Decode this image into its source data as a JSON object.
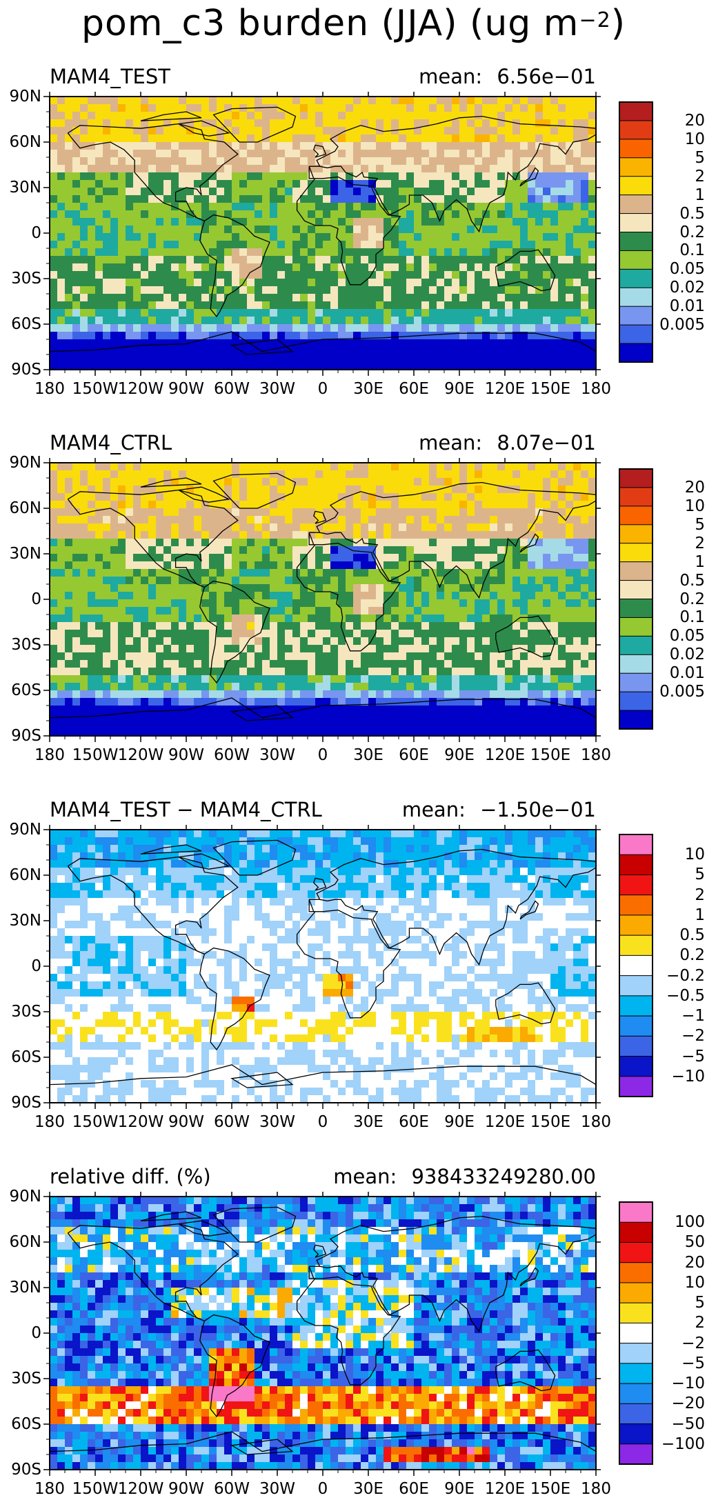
{
  "figure": {
    "title_main": "pom_c3 burden (JJA) (ug m",
    "title_sup": "−2",
    "title_close": ")"
  },
  "x_ticks": [
    "180",
    "150W",
    "120W",
    "90W",
    "60W",
    "30W",
    "0",
    "30E",
    "60E",
    "90E",
    "120E",
    "150E",
    "180"
  ],
  "y_ticks": [
    "90N",
    "60N",
    "30N",
    "0",
    "30S",
    "60S",
    "90S"
  ],
  "colors": {
    "abs": [
      "#0000c8",
      "#3c64e6",
      "#7896f0",
      "#a5dbe6",
      "#1eaaa0",
      "#96c832",
      "#2d8c4b",
      "#f5e6be",
      "#dcb48c",
      "#fadc0a",
      "#fab400",
      "#fa6400",
      "#e13c14",
      "#b41e1e"
    ],
    "diff": [
      "#8c28e6",
      "#0a14c8",
      "#3c64e6",
      "#1e8cf0",
      "#00b4f0",
      "#a0d2fa",
      "#ffffff",
      "#fae11e",
      "#faaa00",
      "#fa6e00",
      "#f01414",
      "#c80000",
      "#fa78c8"
    ],
    "coast": "#000000"
  },
  "chart_data": [
    {
      "type": "heatmap",
      "id": "test",
      "title": "MAM4_TEST",
      "mean_label": "mean:",
      "mean_value": "6.56e−01",
      "palette": "abs",
      "colorbar_levels": [
        "0.005",
        "0.01",
        "0.02",
        "0.05",
        "0.1",
        "0.2",
        "0.5",
        "1",
        "2",
        "5",
        "10",
        "20"
      ],
      "x_range_deg": [
        -180,
        180
      ],
      "y_range_deg": [
        -90,
        90
      ]
    },
    {
      "type": "heatmap",
      "id": "ctrl",
      "title": "MAM4_CTRL",
      "mean_label": "mean:",
      "mean_value": "8.07e−01",
      "palette": "abs",
      "colorbar_levels": [
        "0.005",
        "0.01",
        "0.02",
        "0.05",
        "0.1",
        "0.2",
        "0.5",
        "1",
        "2",
        "5",
        "10",
        "20"
      ],
      "x_range_deg": [
        -180,
        180
      ],
      "y_range_deg": [
        -90,
        90
      ]
    },
    {
      "type": "heatmap",
      "id": "diff",
      "title": "MAM4_TEST − MAM4_CTRL",
      "mean_label": "mean:",
      "mean_value": "−1.50e−01",
      "palette": "diff",
      "colorbar_levels": [
        "−10",
        "−5",
        "−2",
        "−1",
        "−0.5",
        "−0.2",
        "0.2",
        "0.5",
        "1",
        "2",
        "5",
        "10"
      ],
      "x_range_deg": [
        -180,
        180
      ],
      "y_range_deg": [
        -90,
        90
      ]
    },
    {
      "type": "heatmap",
      "id": "rel",
      "title": "relative diff. (%)",
      "mean_label": "mean:",
      "mean_value": "938433249280.00",
      "palette": "diff",
      "colorbar_levels": [
        "−100",
        "−50",
        "−20",
        "−10",
        "−5",
        "−2",
        "2",
        "5",
        "10",
        "20",
        "50",
        "100"
      ],
      "x_range_deg": [
        -180,
        180
      ],
      "y_range_deg": [
        -90,
        90
      ]
    }
  ]
}
